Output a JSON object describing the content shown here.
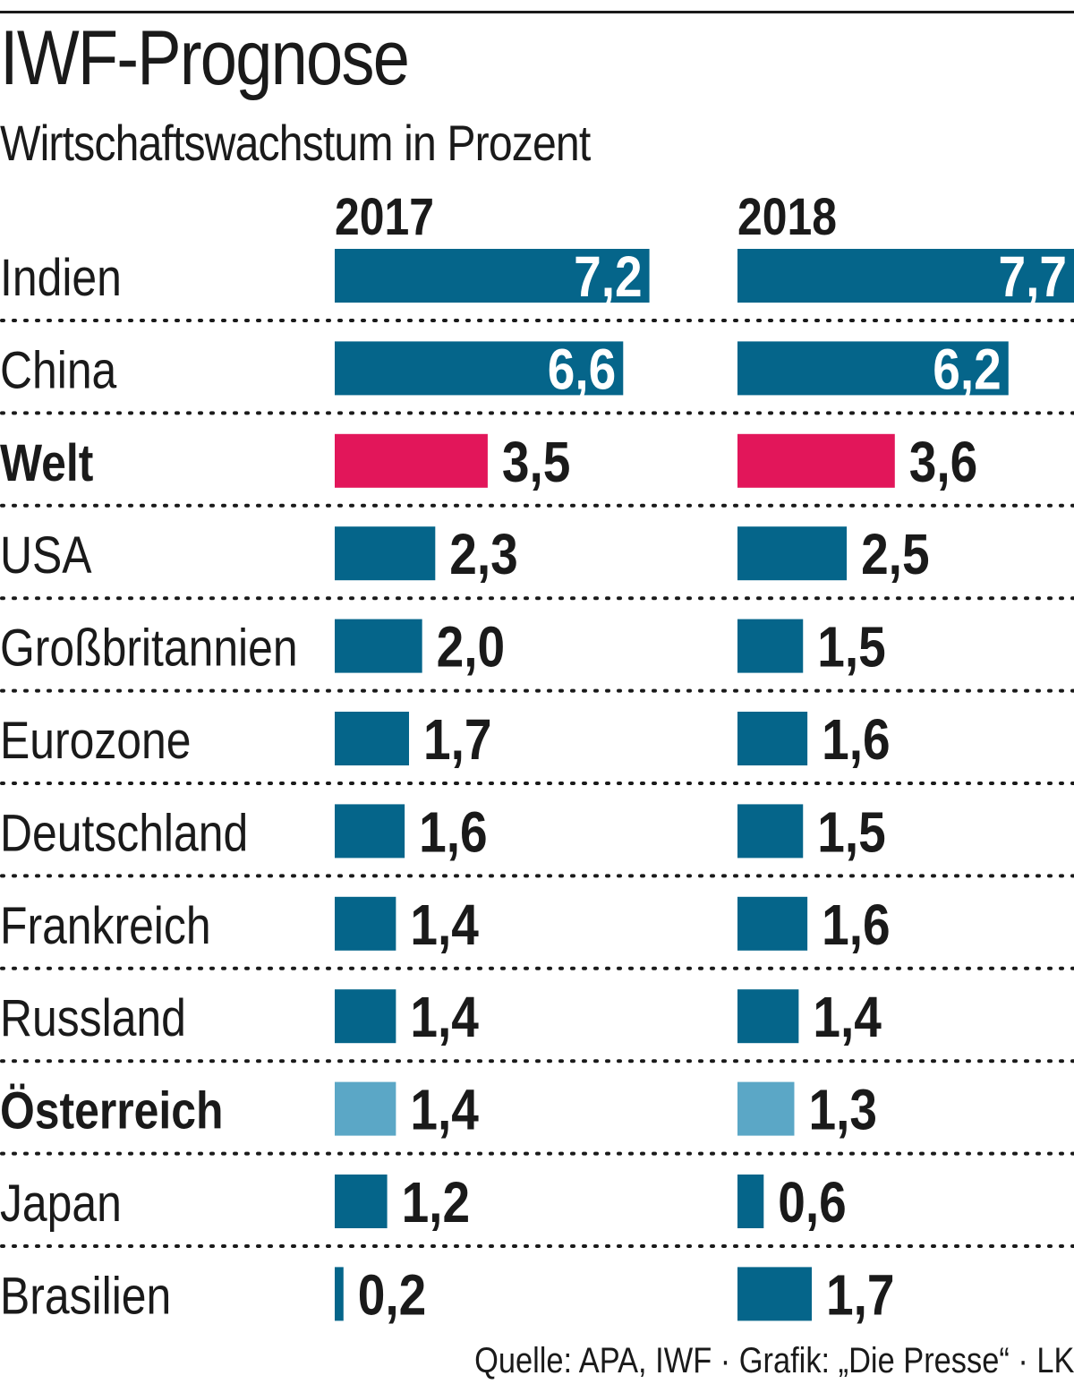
{
  "header": {
    "title": "IWF-Prognose",
    "subtitle": "Wirtschaftswachstum in Prozent"
  },
  "chart_data": {
    "type": "bar",
    "title": "IWF-Prognose",
    "subtitle": "Wirtschaftswachstum in Prozent",
    "categories": [
      "Indien",
      "China",
      "Welt",
      "USA",
      "Großbritannien",
      "Eurozone",
      "Deutschland",
      "Frankreich",
      "Russland",
      "Österreich",
      "Japan",
      "Brasilien"
    ],
    "labels": [
      [
        "7,2",
        "7,7"
      ],
      [
        "6,6",
        "6,2"
      ],
      [
        "3,5",
        "3,6"
      ],
      [
        "2,3",
        "2,5"
      ],
      [
        "2,0",
        "1,5"
      ],
      [
        "1,7",
        "1,6"
      ],
      [
        "1,6",
        "1,5"
      ],
      [
        "1,4",
        "1,6"
      ],
      [
        "1,4",
        "1,4"
      ],
      [
        "1,4",
        "1,3"
      ],
      [
        "1,2",
        "0,6"
      ],
      [
        "0,2",
        "1,7"
      ]
    ],
    "series": [
      {
        "name": "2017",
        "values": [
          7.2,
          6.6,
          3.5,
          2.3,
          2.0,
          1.7,
          1.6,
          1.4,
          1.4,
          1.4,
          1.2,
          0.2
        ]
      },
      {
        "name": "2018",
        "values": [
          7.7,
          6.2,
          3.6,
          2.5,
          1.5,
          1.6,
          1.5,
          1.6,
          1.4,
          1.3,
          0.6,
          1.7
        ]
      }
    ],
    "bold_categories": [
      "Welt",
      "Österreich"
    ],
    "colors": {
      "default": "#05658a",
      "Welt": "#e2165a",
      "Österreich": "#5ba7c6",
      "label_inside": "#ffffff",
      "label_outside": "#1a1a1a"
    },
    "xlim": [
      0,
      7.7
    ],
    "grid": false
  },
  "source": "Quelle: APA, IWF · Grafik: „Die Presse“ · LK"
}
